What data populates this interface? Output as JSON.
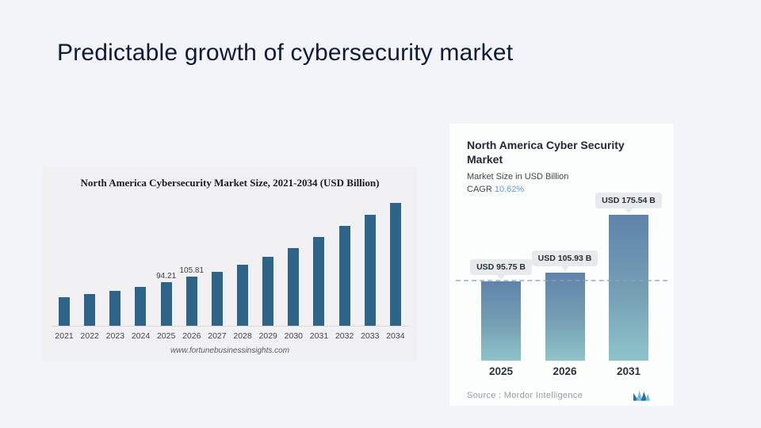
{
  "slide": {
    "title": "Predictable growth of cybersecurity market"
  },
  "colors": {
    "slide_bg": "#f3f4f9",
    "left_panel_bg": "#f1f1f3",
    "left_bar": "#2d6488",
    "right_panel_bg": "#fcfdfd",
    "right_bar_top": "#5f83ab",
    "right_bar_bottom": "#8ec4c9",
    "badge_bg": "#e7eaec",
    "cagr_accent": "#5b9bd0",
    "dashed_line": "#8aa2bd"
  },
  "chart_data": [
    {
      "type": "bar",
      "title": "North America Cybersecurity Market Size, 2021-2034 (USD Billion)",
      "source": "www.fortunebusinessinsights.com",
      "categories": [
        "2021",
        "2022",
        "2023",
        "2024",
        "2025",
        "2026",
        "2027",
        "2028",
        "2029",
        "2030",
        "2031",
        "2032",
        "2033",
        "2034"
      ],
      "values": [
        61,
        68,
        75,
        84,
        94.21,
        105.81,
        116,
        132,
        148,
        167,
        191,
        216,
        240,
        265
      ],
      "bar_value_labels": [
        "",
        "",
        "",
        "",
        "94.21",
        "105.81",
        "",
        "",
        "",
        "",
        "",
        "",
        "",
        ""
      ],
      "xlabel": "",
      "ylabel": "",
      "ylim": [
        0,
        280
      ],
      "grid": false,
      "legend": "none",
      "note": "only 2025 and 2026 bars carry data labels; other values estimated from bar heights"
    },
    {
      "type": "bar",
      "title": "North America Cyber Security Market",
      "subtitle": "Market Size in USD Billion",
      "cagr_label": "CAGR",
      "cagr_value": "10.62%",
      "categories": [
        "2025",
        "2026",
        "2031"
      ],
      "values": [
        95.75,
        105.93,
        175.54
      ],
      "bar_labels": [
        "USD 95.75 B",
        "USD 105.93 B",
        "USD 175.54 B"
      ],
      "dashed_reference_value": 95.75,
      "source_label": "Source :",
      "source": "Mordor Intelligence",
      "xlabel": "",
      "ylabel": "",
      "ylim": [
        0,
        190
      ],
      "grid": false,
      "legend": "none"
    }
  ]
}
